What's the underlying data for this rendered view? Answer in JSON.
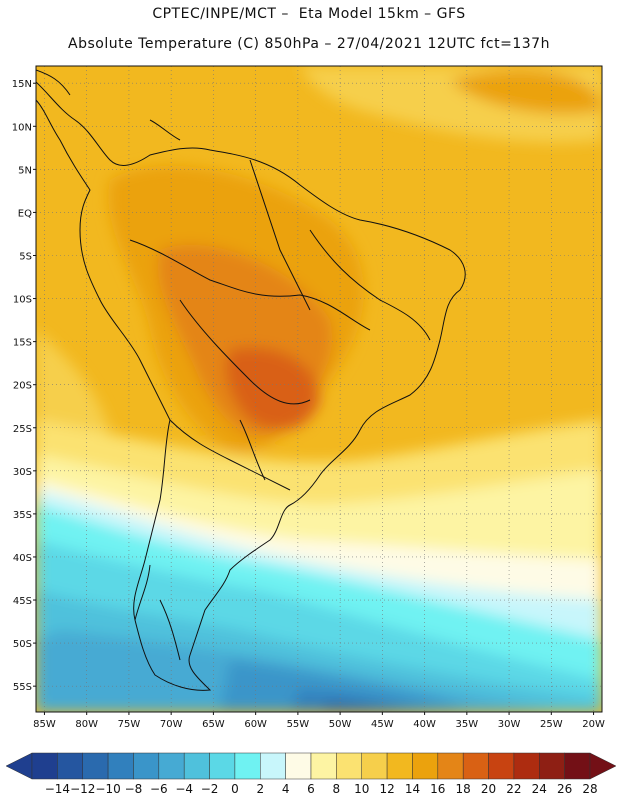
{
  "header": {
    "line1": "CPTEC/INPE/MCT –  Eta Model 15km – GFS",
    "line2": "Absolute Temperature (C) 850hPa – 27/04/2021 12UTC fct=137h"
  },
  "chart_data": {
    "type": "heatmap",
    "variable": "Absolute Temperature (C) 850hPa",
    "model": "Eta Model 15km – GFS",
    "run": "27/04/2021 12UTC",
    "forecast": "fct=137h",
    "lat_range": [
      -58,
      17
    ],
    "lon_range": [
      -86,
      -19
    ],
    "lat_ticks": [
      "15N",
      "10N",
      "5N",
      "EQ",
      "5S",
      "10S",
      "15S",
      "20S",
      "25S",
      "30S",
      "35S",
      "40S",
      "45S",
      "50S",
      "55S"
    ],
    "lon_ticks": [
      "85W",
      "80W",
      "75W",
      "70W",
      "65W",
      "60W",
      "55W",
      "50W",
      "45W",
      "40W",
      "35W",
      "30W",
      "25W",
      "20W"
    ],
    "colorbar": {
      "labels": [
        "-14",
        "-12",
        "-10",
        "-8",
        "-6",
        "-4",
        "-2",
        "0",
        "2",
        "4",
        "6",
        "8",
        "10",
        "12",
        "14",
        "16",
        "18",
        "20",
        "22",
        "24",
        "26",
        "28"
      ],
      "colors": [
        "#1f3f8f",
        "#2556a0",
        "#2a6aae",
        "#3180bd",
        "#3a95c9",
        "#46aad3",
        "#4fc1dc",
        "#5bd8e6",
        "#6ff2f2",
        "#c8f6fb",
        "#fefbe6",
        "#fdf4a3",
        "#fbe271",
        "#f6cf4b",
        "#f2b81f",
        "#eba20d",
        "#e48517",
        "#d96114",
        "#c84311",
        "#ad2c10",
        "#8e1f14",
        "#731016"
      ]
    }
  }
}
